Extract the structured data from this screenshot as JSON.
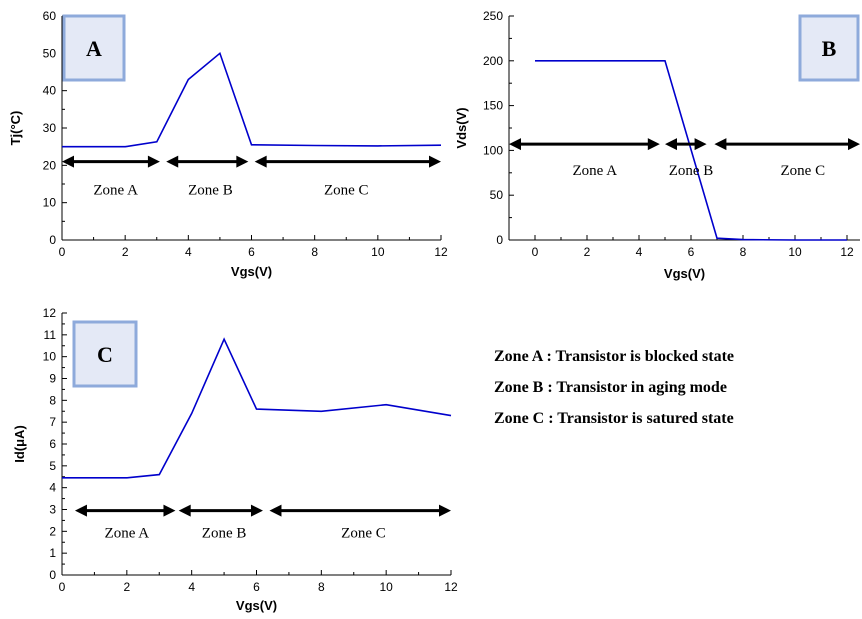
{
  "colors": {
    "series": "#0000cc",
    "panel_box_border": "#8eaadb",
    "panel_box_fill": "#e4e9f6"
  },
  "legend": {
    "lines": [
      "Zone A : Transistor is blocked state",
      "Zone B : Transistor in aging mode",
      "Zone C : Transistor is satured  state"
    ]
  },
  "chart_data": [
    {
      "type": "line",
      "panel_label": "A",
      "xlabel": "Vgs(V)",
      "ylabel": "Tj(°C)",
      "xlim": [
        0,
        12
      ],
      "ylim": [
        0,
        60
      ],
      "xticks": [
        0,
        2,
        4,
        6,
        8,
        10,
        12
      ],
      "yticks": [
        0,
        10,
        20,
        30,
        40,
        50,
        60
      ],
      "series": [
        {
          "x": [
            0,
            2,
            3,
            4,
            5,
            6,
            8,
            10,
            12
          ],
          "y": [
            25,
            25,
            26.3,
            43,
            50,
            25.5,
            25.3,
            25.2,
            25.4
          ]
        }
      ],
      "zones": [
        {
          "label": "Zone A",
          "from": 0,
          "to": 3.1,
          "label_at": 1.7
        },
        {
          "label": "Zone B",
          "from": 3.3,
          "to": 5.9,
          "label_at": 4.7
        },
        {
          "label": "Zone C",
          "from": 6.1,
          "to": 12,
          "label_at": 9
        }
      ],
      "zone_arrow_y": 21,
      "zone_label_y": 13.5
    },
    {
      "type": "line",
      "panel_label": "B",
      "xlabel": "Vgs(V)",
      "ylabel": "Vds(V)",
      "xlim": [
        -1,
        12.5
      ],
      "ylim": [
        0,
        250
      ],
      "xticks": [
        0,
        2,
        4,
        6,
        8,
        10,
        12
      ],
      "yticks": [
        0,
        50,
        100,
        150,
        200,
        250
      ],
      "series": [
        {
          "x": [
            0,
            5,
            7,
            8,
            10,
            12
          ],
          "y": [
            200,
            200,
            2,
            0.5,
            0,
            0
          ]
        }
      ],
      "zones": [
        {
          "label": "Zone A",
          "from": -1,
          "to": 4.8,
          "label_at": 2.3
        },
        {
          "label": "Zone B",
          "from": 5,
          "to": 6.6,
          "label_at": 6
        },
        {
          "label": "Zone C",
          "from": 6.9,
          "to": 12.5,
          "label_at": 10.3
        }
      ],
      "zone_arrow_y": 107,
      "zone_label_y": 78
    },
    {
      "type": "line",
      "panel_label": "C",
      "xlabel": "Vgs(V)",
      "ylabel": "Id(μA)",
      "xlim": [
        0,
        12
      ],
      "ylim": [
        0,
        12
      ],
      "xticks": [
        0,
        2,
        4,
        6,
        8,
        10,
        12
      ],
      "yticks": [
        0,
        1,
        2,
        3,
        4,
        5,
        6,
        7,
        8,
        9,
        10,
        11,
        12
      ],
      "series": [
        {
          "x": [
            0,
            2,
            3,
            4,
            5,
            6,
            8,
            10,
            12
          ],
          "y": [
            4.45,
            4.45,
            4.6,
            7.4,
            10.8,
            7.6,
            7.5,
            7.8,
            7.3
          ]
        }
      ],
      "zones": [
        {
          "label": "Zone A",
          "from": 0.4,
          "to": 3.5,
          "label_at": 2
        },
        {
          "label": "Zone B",
          "from": 3.6,
          "to": 6.2,
          "label_at": 5
        },
        {
          "label": "Zone C",
          "from": 6.4,
          "to": 12,
          "label_at": 9.3
        }
      ],
      "zone_arrow_y": 2.95,
      "zone_label_y": 1.95
    }
  ]
}
